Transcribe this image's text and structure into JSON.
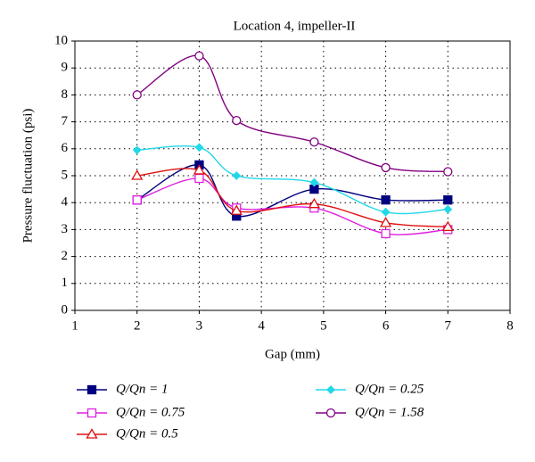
{
  "chart_data": {
    "type": "line",
    "title": "Location 4, impeller-II",
    "x_label": "Gap (mm)",
    "y_label": "Pressure fluctuation (psi)",
    "x": [
      2,
      3,
      3.6,
      4.85,
      6,
      7
    ],
    "xlim": [
      1,
      8
    ],
    "xticks": [
      1,
      2,
      3,
      4,
      5,
      6,
      7,
      8
    ],
    "ylim": [
      0,
      10
    ],
    "yticks": [
      0,
      1,
      2,
      3,
      4,
      5,
      6,
      7,
      8,
      9,
      10
    ],
    "grid": true,
    "smooth": true,
    "series": [
      {
        "name": "Q/Qn = 1",
        "color": "#000080",
        "marker": "square",
        "filled": true,
        "values": [
          4.1,
          5.4,
          3.5,
          4.5,
          4.1,
          4.1
        ]
      },
      {
        "name": "Q/Qn = 0.75",
        "color": "#e020e0",
        "marker": "square",
        "filled": false,
        "values": [
          4.1,
          4.9,
          3.8,
          3.8,
          2.85,
          3.0
        ]
      },
      {
        "name": "Q/Qn = 0.5",
        "color": "#e01010",
        "marker": "triangle",
        "filled": false,
        "values": [
          5.0,
          5.2,
          3.7,
          3.95,
          3.25,
          3.1
        ]
      },
      {
        "name": "Q/Qn = 0.25",
        "color": "#20d8e8",
        "marker": "diamond",
        "filled": true,
        "values": [
          5.95,
          6.05,
          5.0,
          4.75,
          3.65,
          3.75
        ]
      },
      {
        "name": "Q/Qn = 1.58",
        "color": "#800080",
        "marker": "circle",
        "filled": false,
        "values": [
          8.0,
          9.45,
          7.05,
          6.25,
          5.3,
          5.15
        ]
      }
    ]
  }
}
